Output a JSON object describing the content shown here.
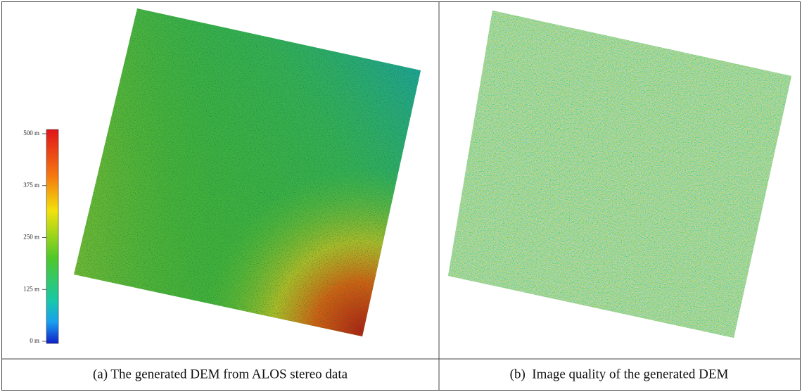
{
  "panels": [
    {
      "caption": "(a) The generated DEM from ALOS stereo data",
      "colorbar": {
        "ticks": [
          "500 m",
          "375 m",
          "250 m",
          "125 m",
          "0 m"
        ]
      }
    },
    {
      "caption": "(b)  Image quality of the generated DEM"
    }
  ]
}
